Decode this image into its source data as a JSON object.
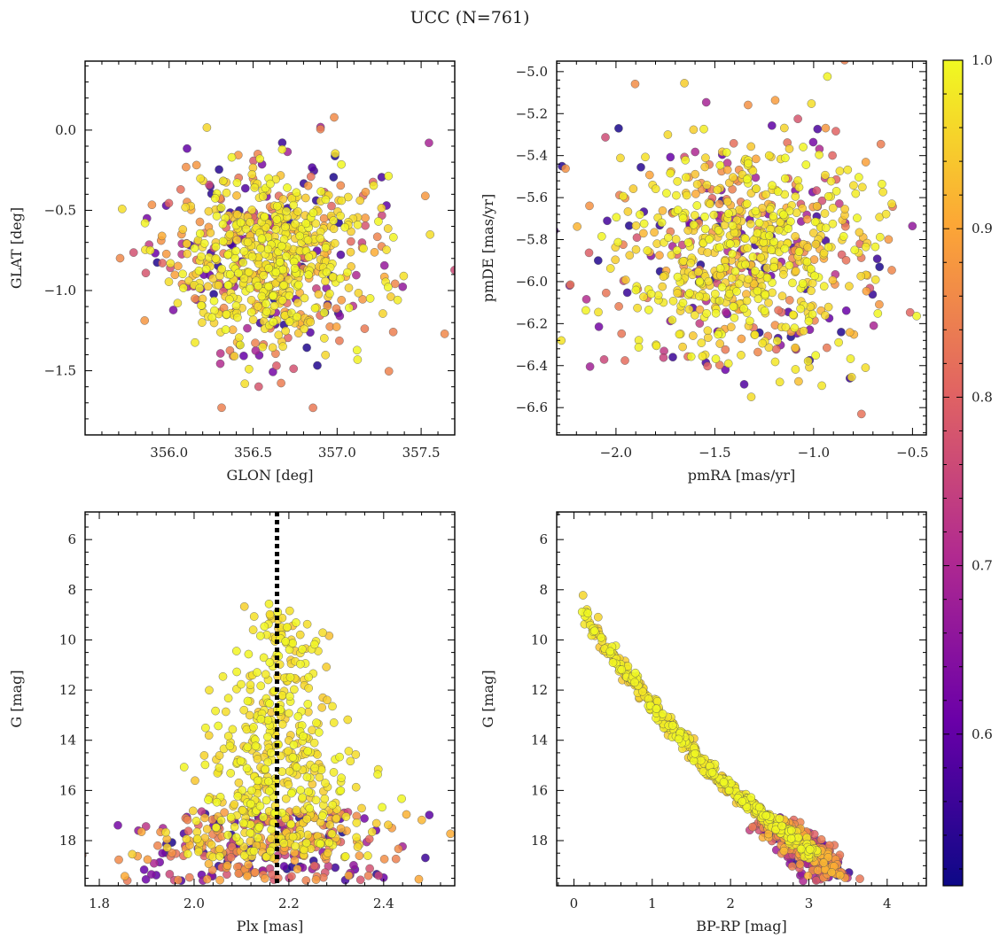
{
  "figure_title": "UCC (N=761)",
  "colormap": {
    "name": "plasma",
    "min": 0.51,
    "max": 1.0,
    "stops": [
      "#0d0887",
      "#6a00a8",
      "#b12a90",
      "#e16462",
      "#fca636",
      "#f0f921"
    ],
    "ticks": [
      "1.0",
      "0.9",
      "0.8",
      "0.7",
      "0.6"
    ],
    "tick_values": [
      1.0,
      0.9,
      0.8,
      0.7,
      0.6
    ]
  },
  "chart_data": [
    {
      "id": "glon-glat",
      "type": "scatter",
      "xlabel": "GLON [deg]",
      "ylabel": "GLAT [deg]",
      "xlim": [
        355.5,
        357.7
      ],
      "ylim": [
        -1.9,
        0.43
      ],
      "yinvert": false,
      "xticks": [
        356.0,
        356.5,
        357.0,
        357.5
      ],
      "xtick_labels": [
        "356.0",
        "356.5",
        "357.0",
        "357.5"
      ],
      "yticks": [
        0.0,
        -0.5,
        -1.0,
        -1.5
      ],
      "ytick_labels": [
        "0.0",
        "−0.5",
        "−1.0",
        "−1.5"
      ],
      "x_center": 356.6,
      "x_spread": 0.28,
      "y_center": -0.8,
      "y_spread": 0.26,
      "n_points": 761
    },
    {
      "id": "pmra-pmde",
      "type": "scatter",
      "xlabel": "pmRA [mas/yr]",
      "ylabel": "pmDE [mas/yr]",
      "xlim": [
        -2.3,
        -0.43
      ],
      "ylim": [
        -6.73,
        -4.95
      ],
      "yinvert": false,
      "xticks": [
        -2.0,
        -1.5,
        -1.0,
        -0.5
      ],
      "xtick_labels": [
        "−2.0",
        "−1.5",
        "−1.0",
        "−0.5"
      ],
      "yticks": [
        -5.0,
        -5.2,
        -5.4,
        -5.6,
        -5.8,
        -6.0,
        -6.2,
        -6.4,
        -6.6
      ],
      "ytick_labels": [
        "−5.0",
        "−5.2",
        "−5.4",
        "−5.6",
        "−5.8",
        "−6.0",
        "−6.2",
        "−6.4",
        "−6.6"
      ],
      "x_center": -1.35,
      "x_spread": 0.3,
      "y_center": -5.85,
      "y_spread": 0.25,
      "n_points": 761
    },
    {
      "id": "plx-g",
      "type": "scatter",
      "xlabel": "Plx [mas]",
      "ylabel": "G [mag]",
      "xlim": [
        1.77,
        2.55
      ],
      "ylim": [
        4.9,
        19.8
      ],
      "yinvert": true,
      "xticks": [
        1.8,
        2.0,
        2.2,
        2.4
      ],
      "xtick_labels": [
        "1.8",
        "2.0",
        "2.2",
        "2.4"
      ],
      "yticks": [
        6,
        8,
        10,
        12,
        14,
        16,
        18
      ],
      "ytick_labels": [
        "6",
        "8",
        "10",
        "12",
        "14",
        "16",
        "18"
      ],
      "vline": 2.175,
      "n_points": 761
    },
    {
      "id": "bprp-g",
      "type": "scatter",
      "xlabel": "BP-RP [mag]",
      "ylabel": "G [mag]",
      "xlim": [
        -0.22,
        4.5
      ],
      "ylim": [
        4.9,
        19.8
      ],
      "yinvert": true,
      "xticks": [
        0,
        1,
        2,
        3,
        4
      ],
      "xtick_labels": [
        "0",
        "1",
        "2",
        "3",
        "4"
      ],
      "yticks": [
        6,
        8,
        10,
        12,
        14,
        16,
        18
      ],
      "ytick_labels": [
        "6",
        "8",
        "10",
        "12",
        "14",
        "16",
        "18"
      ],
      "sequence_color": [
        [
          0.0,
          8.0
        ],
        [
          0.3,
          9.8
        ],
        [
          0.8,
          11.8
        ],
        [
          1.2,
          13.3
        ],
        [
          1.6,
          14.8
        ],
        [
          2.1,
          16.2
        ],
        [
          2.6,
          17.4
        ],
        [
          3.0,
          18.4
        ],
        [
          3.2,
          19.3
        ]
      ],
      "n_points": 761
    }
  ]
}
